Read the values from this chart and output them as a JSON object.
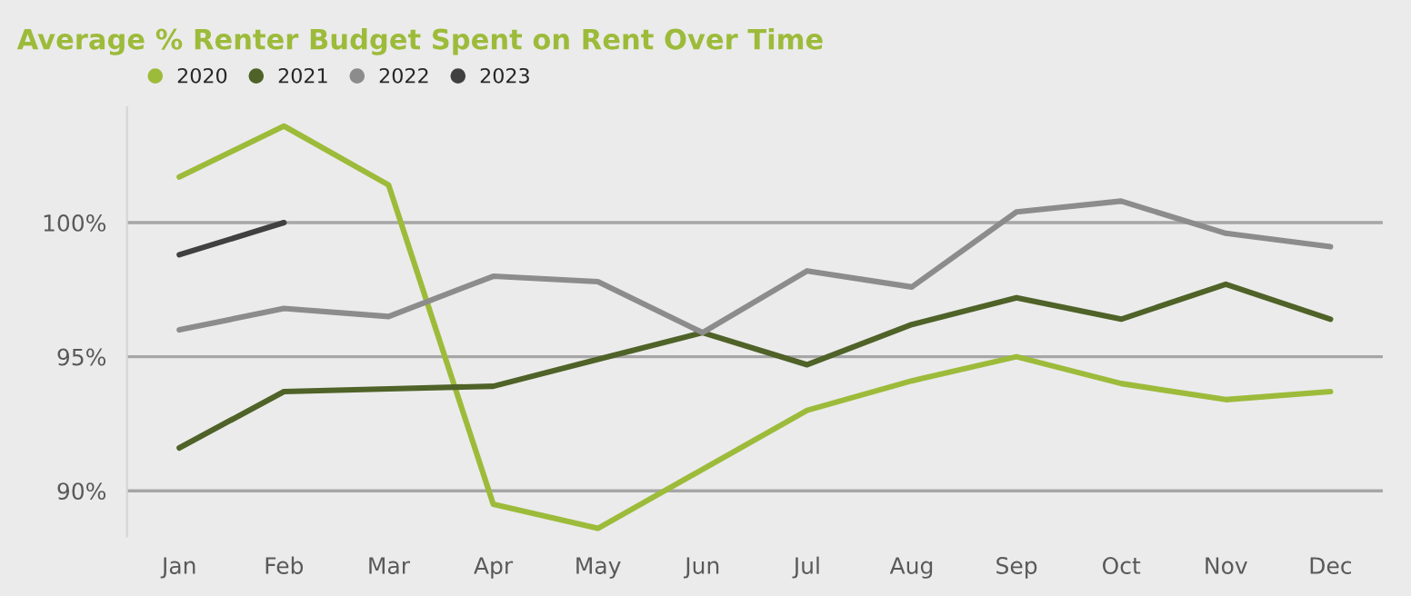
{
  "chart_data": {
    "type": "line",
    "title": "Average % Renter Budget Spent on Rent Over Time",
    "categories": [
      "Jan",
      "Feb",
      "Mar",
      "Apr",
      "May",
      "Jun",
      "Jul",
      "Aug",
      "Sep",
      "Oct",
      "Nov",
      "Dec"
    ],
    "series": [
      {
        "name": "2020",
        "color": "#9dbb3a",
        "values": [
          101.7,
          103.6,
          101.4,
          89.5,
          88.6,
          90.8,
          93.0,
          94.1,
          95.0,
          94.0,
          93.4,
          93.7
        ]
      },
      {
        "name": "2021",
        "color": "#4f6228",
        "values": [
          91.6,
          93.7,
          93.8,
          93.9,
          94.9,
          95.9,
          94.7,
          96.2,
          97.2,
          96.4,
          97.7,
          96.4
        ]
      },
      {
        "name": "2022",
        "color": "#8c8c8c",
        "values": [
          96.0,
          96.8,
          96.5,
          98.0,
          97.8,
          95.9,
          98.2,
          97.6,
          100.4,
          100.8,
          99.6,
          99.1
        ]
      },
      {
        "name": "2023",
        "color": "#404040",
        "values": [
          98.8,
          100.0,
          null,
          null,
          null,
          null,
          null,
          null,
          null,
          null,
          null,
          null
        ]
      }
    ],
    "ylim": [
      88.3,
      104.3
    ],
    "yticks": [
      {
        "value": 90,
        "label": "90%"
      },
      {
        "value": 95,
        "label": "95%"
      },
      {
        "value": 100,
        "label": "100%"
      }
    ],
    "grid": "y",
    "legend": "top left",
    "marker": "none",
    "line_style": "solid"
  }
}
